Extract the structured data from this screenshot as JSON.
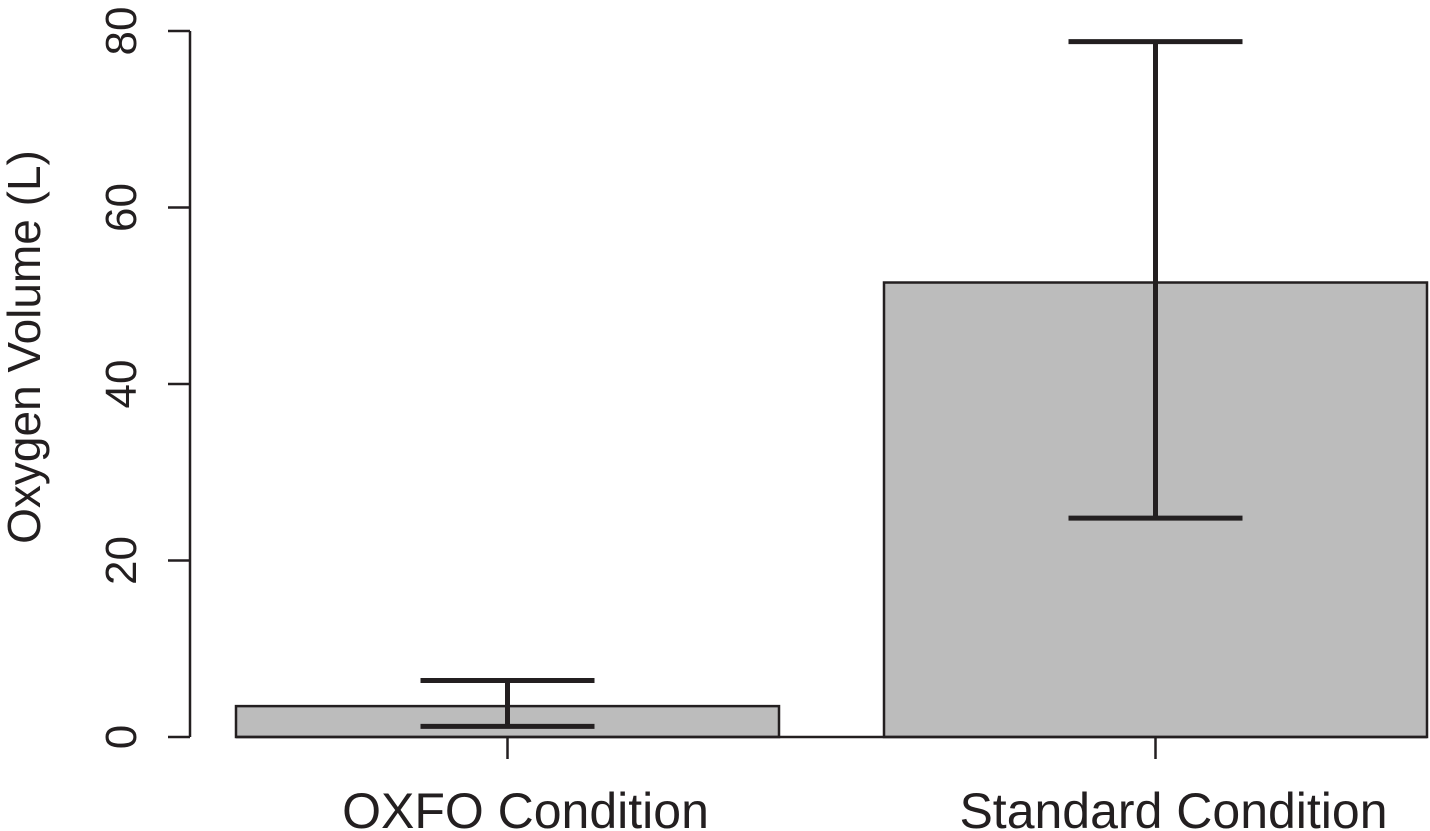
{
  "chart_data": {
    "type": "bar",
    "title": "",
    "xlabel": "",
    "ylabel": "Oxygen Volume (L)",
    "categories": [
      "OXFO Condition",
      "Standard Condition"
    ],
    "values": [
      3.5,
      51.5
    ],
    "error_bars": [
      {
        "low": 1.2,
        "high": 6.4
      },
      {
        "low": 24.8,
        "high": 78.8
      }
    ],
    "ylim": [
      0,
      80
    ],
    "yticks": [
      0,
      20,
      40,
      60,
      80
    ],
    "ytick_labels": [
      "0",
      "20",
      "40",
      "60",
      "80"
    ],
    "grid": false,
    "legend": "none",
    "colors": {
      "bar_fill": "#bcbcbc",
      "bar_stroke": "#231f20",
      "axis": "#231f20",
      "error_bar": "#231f20"
    }
  }
}
